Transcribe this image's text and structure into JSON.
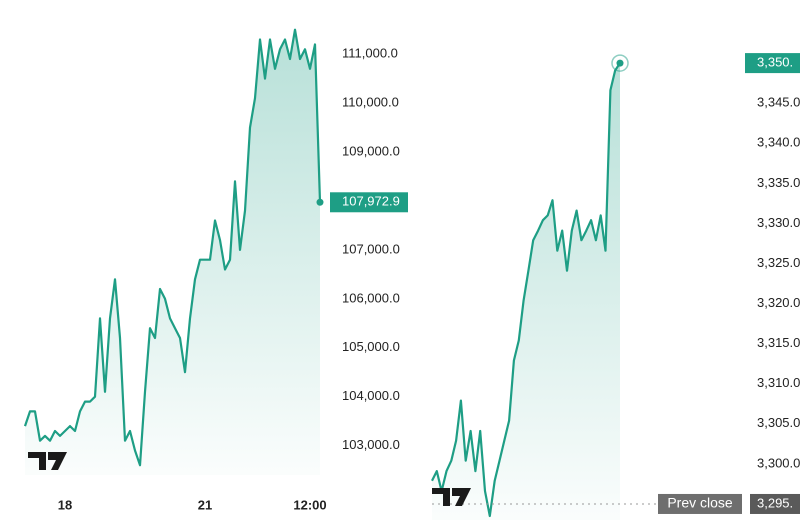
{
  "chart_data": [
    {
      "type": "area",
      "color": "#1e9e85",
      "categories": [
        null,
        null,
        null,
        null,
        null,
        null,
        null,
        null,
        "18",
        null,
        null,
        null,
        null,
        null,
        null,
        null,
        null,
        null,
        null,
        null,
        null,
        null,
        null,
        null,
        null,
        null,
        null,
        null,
        null,
        null,
        null,
        null,
        null,
        null,
        null,
        null,
        "21",
        null,
        null,
        null,
        null,
        null,
        null,
        null,
        null,
        null,
        null,
        null,
        null,
        null,
        null,
        null,
        null,
        null,
        null,
        null,
        null,
        "12:00",
        null,
        null
      ],
      "values": [
        103400,
        103700,
        103700,
        103100,
        103200,
        103100,
        103300,
        103200,
        103300,
        103400,
        103300,
        103700,
        103900,
        103900,
        104000,
        105600,
        104100,
        105600,
        106400,
        105200,
        103100,
        103300,
        102900,
        102600,
        104100,
        105400,
        105200,
        106200,
        106000,
        105600,
        105400,
        105200,
        104500,
        105600,
        106400,
        106800,
        106800,
        106800,
        107600,
        107200,
        106600,
        106800,
        108400,
        107000,
        107800,
        109500,
        110100,
        111300,
        110500,
        111300,
        110700,
        111100,
        111300,
        110900,
        111500,
        110900,
        111100,
        110700,
        111200,
        107972.9
      ],
      "value_labels": [
        null,
        null,
        null,
        null,
        null,
        null,
        null,
        null,
        null,
        null,
        null,
        null,
        null,
        null,
        null,
        null,
        null,
        null,
        null,
        null,
        null,
        null,
        null,
        null,
        null,
        null,
        null,
        null,
        null,
        null,
        null,
        null,
        null,
        null,
        null,
        null,
        null,
        null,
        null,
        null,
        null,
        null,
        null,
        null,
        null,
        null,
        null,
        null,
        null,
        null,
        null,
        null,
        null,
        null,
        null,
        null,
        null,
        null,
        null,
        "107,972.9"
      ],
      "ylim": [
        102400,
        111800
      ],
      "yticks": [
        {
          "value": 103000,
          "label": "103,000.0"
        },
        {
          "value": 104000,
          "label": "104,000.0"
        },
        {
          "value": 105000,
          "label": "105,000.0"
        },
        {
          "value": 106000,
          "label": "106,000.0"
        },
        {
          "value": 107000,
          "label": "107,000.0"
        },
        {
          "value": 109000,
          "label": "109,000.0"
        },
        {
          "value": 110000,
          "label": "110,000.0"
        },
        {
          "value": 111000,
          "label": "111,000.0"
        }
      ]
    },
    {
      "type": "area",
      "color": "#1e9e85",
      "values": [
        3297.9,
        3299.1,
        3296.6,
        3299.1,
        3300.4,
        3302.9,
        3307.9,
        3300.4,
        3304.1,
        3299.1,
        3304.1,
        3296.6,
        3293.5,
        3297.9,
        3300.4,
        3302.9,
        3305.4,
        3312.9,
        3315.4,
        3320.4,
        3324.1,
        3327.9,
        3329.1,
        3330.4,
        3331,
        3332.9,
        3326.6,
        3329.1,
        3324.1,
        3329.1,
        3331.6,
        3327.9,
        3329.1,
        3330.4,
        3327.9,
        3331,
        3326.6,
        3346.6,
        3349.1,
        3350
      ],
      "value_labels": [
        null,
        null,
        null,
        null,
        null,
        null,
        null,
        null,
        null,
        null,
        null,
        null,
        null,
        null,
        null,
        null,
        null,
        null,
        null,
        null,
        null,
        null,
        null,
        null,
        null,
        null,
        null,
        null,
        null,
        null,
        null,
        null,
        null,
        null,
        null,
        null,
        null,
        null,
        null,
        "3,350."
      ],
      "ylim": [
        3293,
        3356
      ],
      "yticks": [
        {
          "value": 3300,
          "label": "3,300.0"
        },
        {
          "value": 3305,
          "label": "3,305.0"
        },
        {
          "value": 3310,
          "label": "3,310.0"
        },
        {
          "value": 3315,
          "label": "3,315.0"
        },
        {
          "value": 3320,
          "label": "3,320.0"
        },
        {
          "value": 3325,
          "label": "3,325.0"
        },
        {
          "value": 3330,
          "label": "3,330.0"
        },
        {
          "value": 3335,
          "label": "3,335.0"
        },
        {
          "value": 3340,
          "label": "3,340.0"
        },
        {
          "value": 3345,
          "label": "3,345.0"
        }
      ],
      "prev_close": {
        "label": "Prev close",
        "value": 3295,
        "value_label": "3,295."
      }
    }
  ]
}
